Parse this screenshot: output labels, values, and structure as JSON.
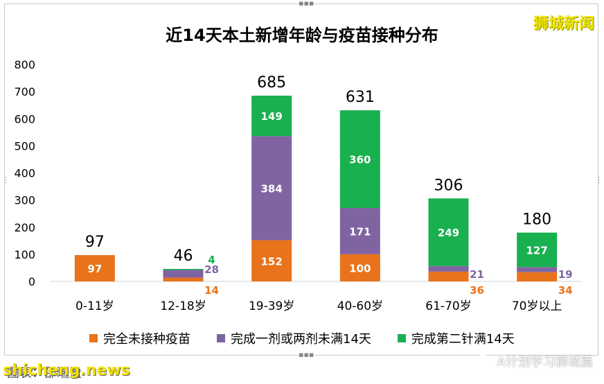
{
  "title": "近14天本土新增年龄与疫苗接种分布",
  "brand": "狮城新闻",
  "source_text": "图表：邵瑞盈",
  "site_watermark": "shicheng.news",
  "account": "A计划学习狮城篇",
  "colors": {
    "unvaccinated": "#e8731a",
    "partial": "#8064a2",
    "full": "#19b050"
  },
  "legend": [
    {
      "label": "完全未接种疫苗",
      "color": "#e8731a"
    },
    {
      "label": "完成一剂或两剂未满14天",
      "color": "#8064a2"
    },
    {
      "label": "完成第二针满14天",
      "color": "#19b050"
    }
  ],
  "chart_data": {
    "type": "bar",
    "stacked": true,
    "title": "近14天本土新增年龄与疫苗接种分布",
    "categories": [
      "0-11岁",
      "12-18岁",
      "19-39岁",
      "40-60岁",
      "61-70岁",
      "70岁以上"
    ],
    "series": [
      {
        "name": "完全未接种疫苗",
        "values": [
          97,
          14,
          152,
          100,
          36,
          34
        ]
      },
      {
        "name": "完成一剂或两剂未满14天",
        "values": [
          0,
          28,
          384,
          171,
          21,
          19
        ]
      },
      {
        "name": "完成第二针满14天",
        "values": [
          0,
          4,
          149,
          360,
          249,
          127
        ]
      }
    ],
    "totals": [
      97,
      46,
      685,
      631,
      306,
      180
    ],
    "y_ticks": [
      "0",
      "100",
      "200",
      "300",
      "400",
      "500",
      "600",
      "700",
      "800"
    ],
    "ylim": [
      0,
      800
    ],
    "legend_position": "bottom",
    "grid": false
  }
}
